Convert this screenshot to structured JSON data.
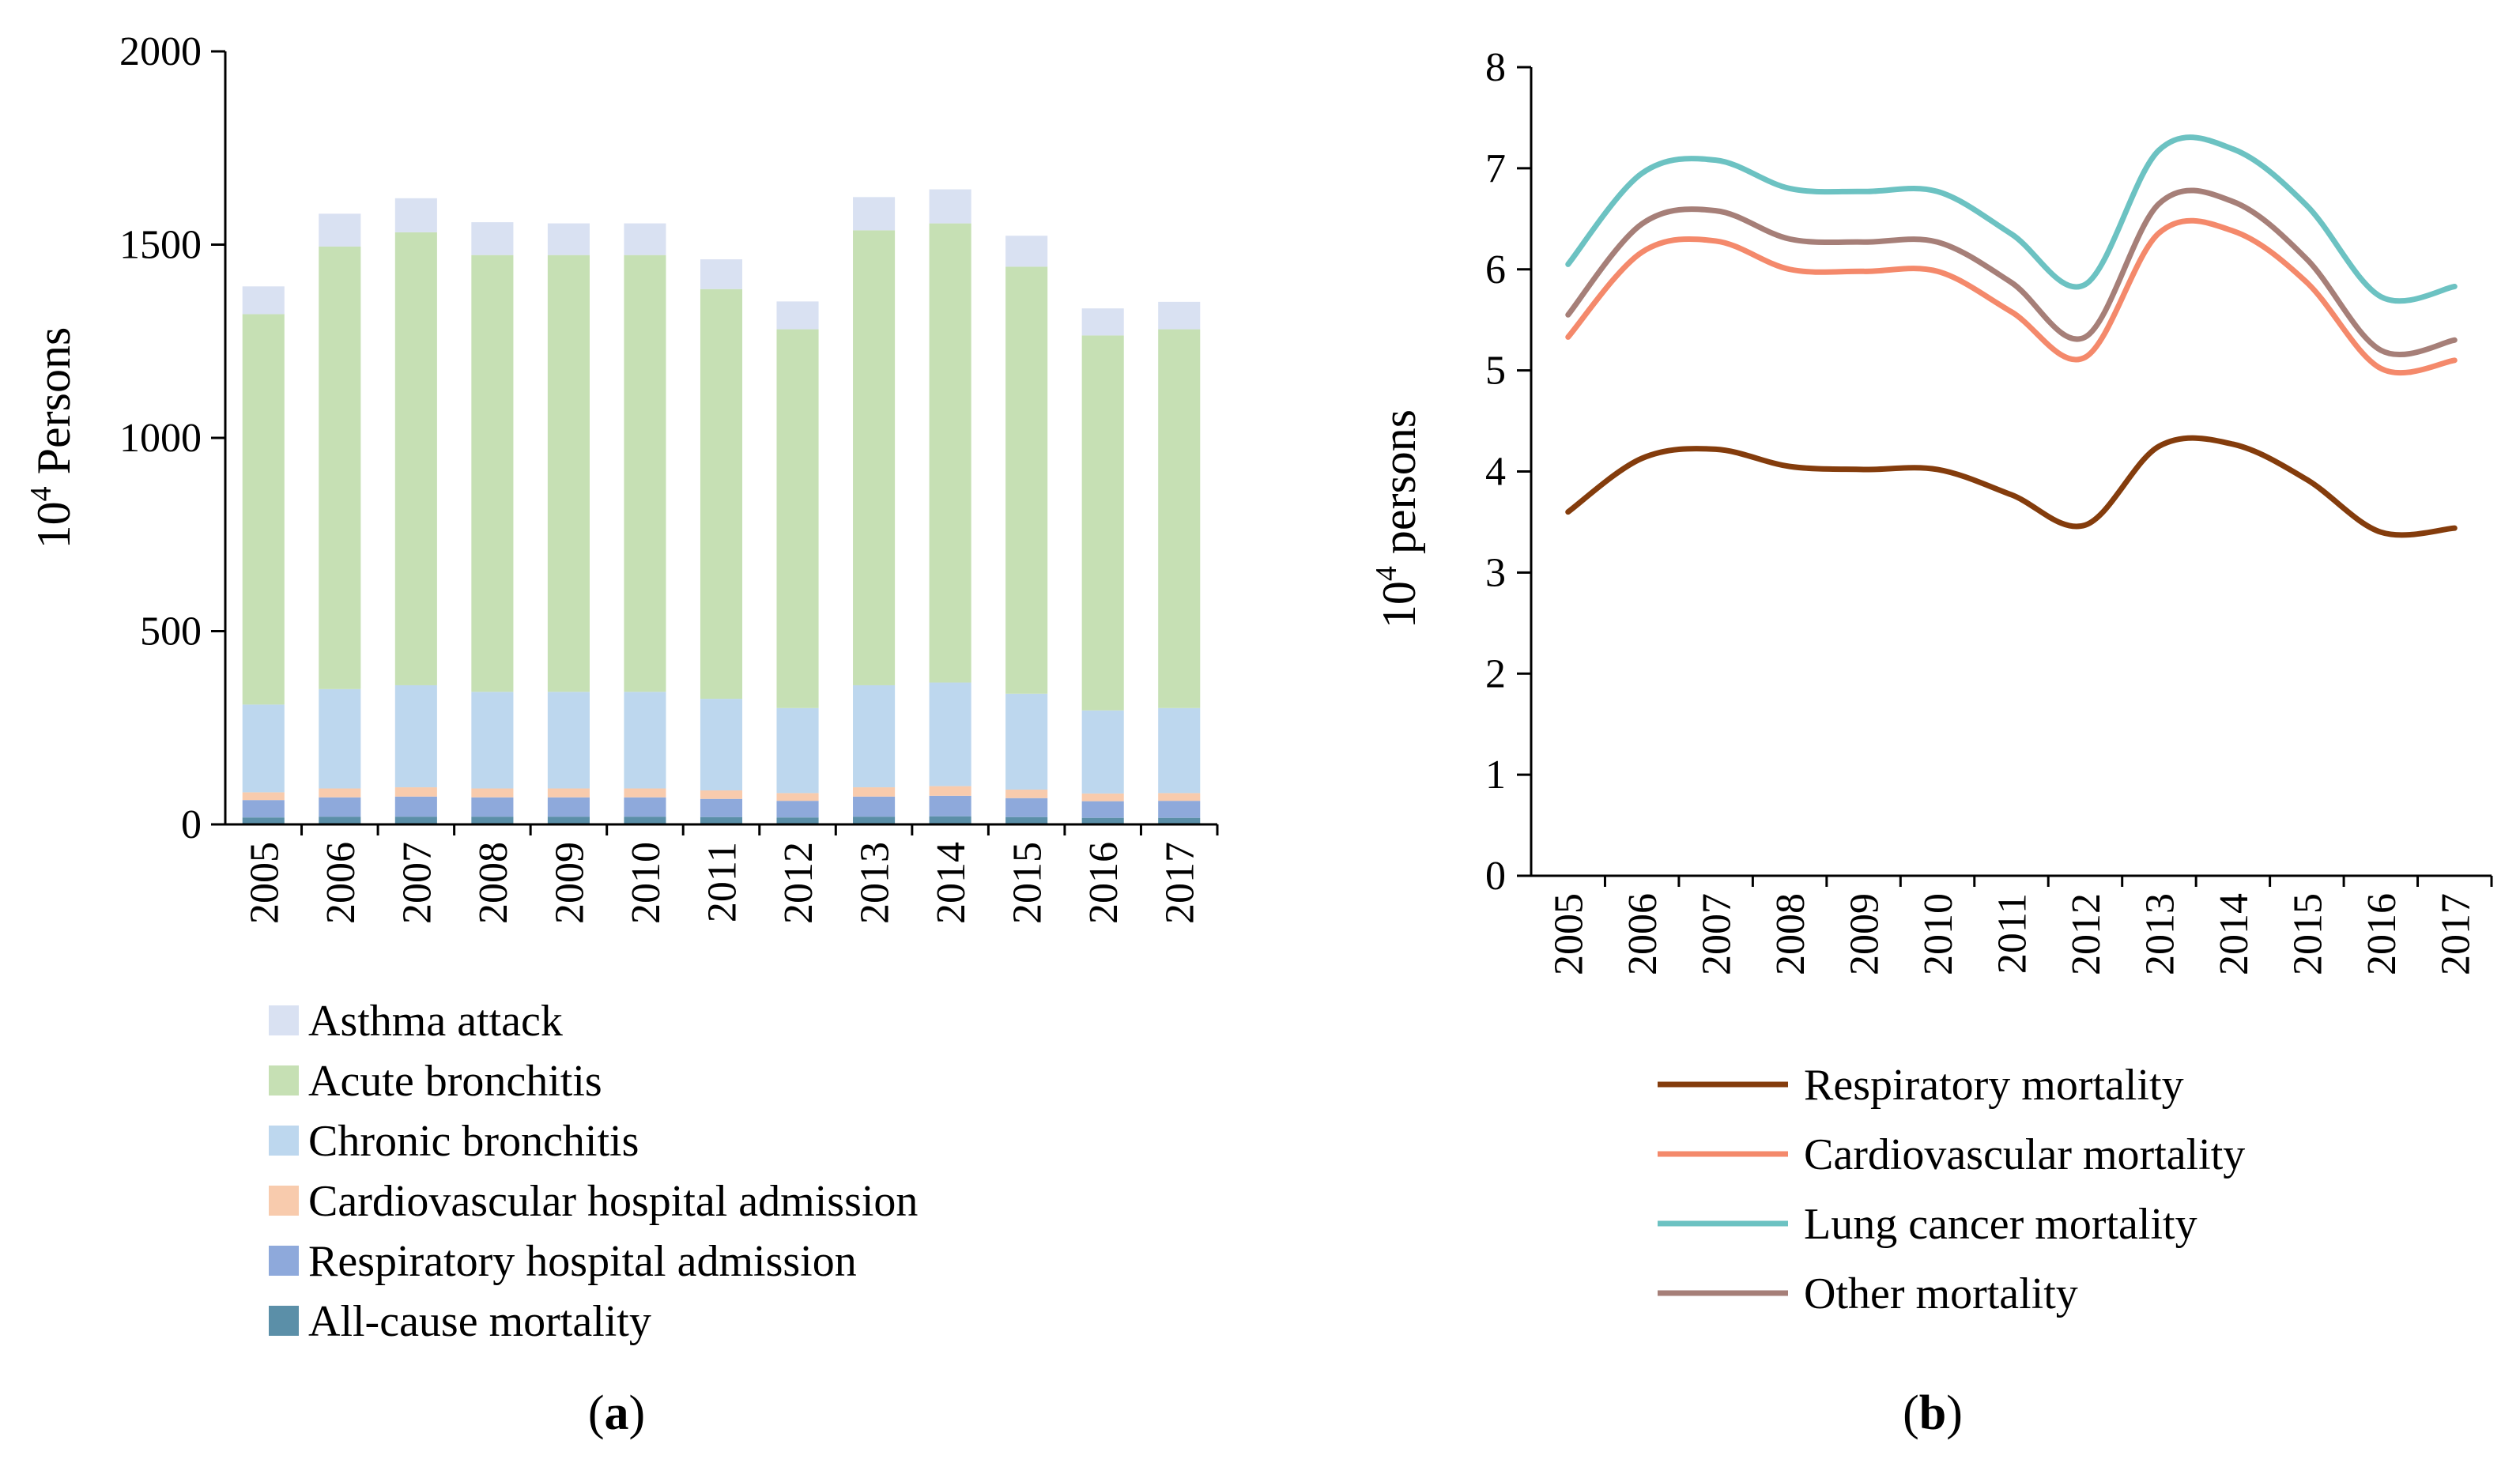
{
  "figure": {
    "panel_a_label": "(a)",
    "panel_b_label": "(b)",
    "panel_a_letter": "a",
    "panel_b_letter": "b"
  },
  "colors": {
    "axis": "#000000",
    "asthma_attack": "#D9E1F2",
    "acute_bronchitis": "#C6E0B4",
    "chronic_bronchitis": "#BDD7EE",
    "cardiovascular_hospital_admission": "#F8CBAD",
    "respiratory_hospital_admission": "#8EA9DB",
    "all_cause_mortality": "#5B8FA8",
    "respiratory_mortality": "#843C0C",
    "cardiovascular_mortality": "#F4896B",
    "lung_cancer_mortality": "#6CC2C2",
    "other_mortality": "#A67F78"
  },
  "chart_data": [
    {
      "type": "bar",
      "stacked": true,
      "title": "",
      "panel": "(a)",
      "xlabel": "",
      "ylabel": "10^4 Persons",
      "ylabel_base": "10",
      "ylabel_exp": "4",
      "ylabel_rest": " Persons",
      "ylim": [
        0,
        2000
      ],
      "yticks": [
        0,
        500,
        1000,
        1500,
        2000
      ],
      "categories": [
        "2005",
        "2006",
        "2007",
        "2008",
        "2009",
        "2010",
        "2011",
        "2012",
        "2013",
        "2014",
        "2015",
        "2016",
        "2017"
      ],
      "legend_position": "bottom",
      "series": [
        {
          "name": "All-cause mortality",
          "color_key": "all_cause_mortality",
          "values": [
            18,
            20,
            20,
            20,
            20,
            20,
            19,
            18,
            20,
            21,
            19,
            17,
            17
          ]
        },
        {
          "name": "Respiratory hospital admission",
          "color_key": "respiratory_hospital_admission",
          "values": [
            45,
            50,
            52,
            50,
            50,
            50,
            47,
            43,
            52,
            53,
            49,
            43,
            44
          ]
        },
        {
          "name": "Cardiovascular hospital admission",
          "color_key": "cardiovascular_hospital_admission",
          "values": [
            20,
            23,
            24,
            23,
            23,
            23,
            22,
            20,
            24,
            25,
            22,
            20,
            20
          ]
        },
        {
          "name": "Chronic bronchitis",
          "color_key": "chronic_bronchitis",
          "values": [
            227,
            257,
            264,
            250,
            250,
            250,
            237,
            220,
            264,
            268,
            248,
            215,
            220
          ]
        },
        {
          "name": "Acute bronchitis",
          "color_key": "acute_bronchitis",
          "values": [
            1010,
            1145,
            1172,
            1130,
            1130,
            1130,
            1060,
            980,
            1177,
            1188,
            1105,
            970,
            980
          ]
        },
        {
          "name": "Asthma attack",
          "color_key": "asthma_attack",
          "values": [
            72,
            85,
            88,
            85,
            82,
            82,
            77,
            72,
            86,
            88,
            80,
            70,
            71
          ]
        }
      ],
      "legend_order": [
        "Asthma attack",
        "Acute bronchitis",
        "Chronic bronchitis",
        "Cardiovascular hospital admission",
        "Respiratory hospital admission",
        "All-cause mortality"
      ]
    },
    {
      "type": "line",
      "title": "",
      "panel": "(b)",
      "xlabel": "",
      "ylabel": "10^4 persons",
      "ylabel_base": "10",
      "ylabel_exp": "4",
      "ylabel_rest": " persons",
      "ylim": [
        0,
        8
      ],
      "yticks": [
        0,
        1,
        2,
        3,
        4,
        5,
        6,
        7,
        8
      ],
      "categories": [
        "2005",
        "2006",
        "2007",
        "2008",
        "2009",
        "2010",
        "2011",
        "2012",
        "2013",
        "2014",
        "2015",
        "2016",
        "2017"
      ],
      "legend_position": "bottom",
      "series": [
        {
          "name": "Respiratory mortality",
          "color_key": "respiratory_mortality",
          "values": [
            3.6,
            4.13,
            4.22,
            4.05,
            4.02,
            4.02,
            3.77,
            3.47,
            4.25,
            4.27,
            3.92,
            3.4,
            3.44
          ]
        },
        {
          "name": "Cardiovascular mortality",
          "color_key": "cardiovascular_mortality",
          "values": [
            5.33,
            6.17,
            6.28,
            6.0,
            5.98,
            5.98,
            5.58,
            5.13,
            6.36,
            6.38,
            5.87,
            5.02,
            5.1
          ]
        },
        {
          "name": "Lung cancer mortality",
          "color_key": "lung_cancer_mortality",
          "values": [
            6.05,
            6.95,
            7.08,
            6.8,
            6.77,
            6.77,
            6.35,
            5.85,
            7.18,
            7.19,
            6.63,
            5.73,
            5.83
          ]
        },
        {
          "name": "Other mortality",
          "color_key": "other_mortality",
          "values": [
            5.55,
            6.45,
            6.58,
            6.3,
            6.27,
            6.27,
            5.87,
            5.33,
            6.65,
            6.67,
            6.1,
            5.2,
            5.3
          ]
        }
      ],
      "legend_order": [
        "Respiratory mortality",
        "Cardiovascular mortality",
        "Lung cancer mortality",
        "Other mortality"
      ]
    }
  ]
}
